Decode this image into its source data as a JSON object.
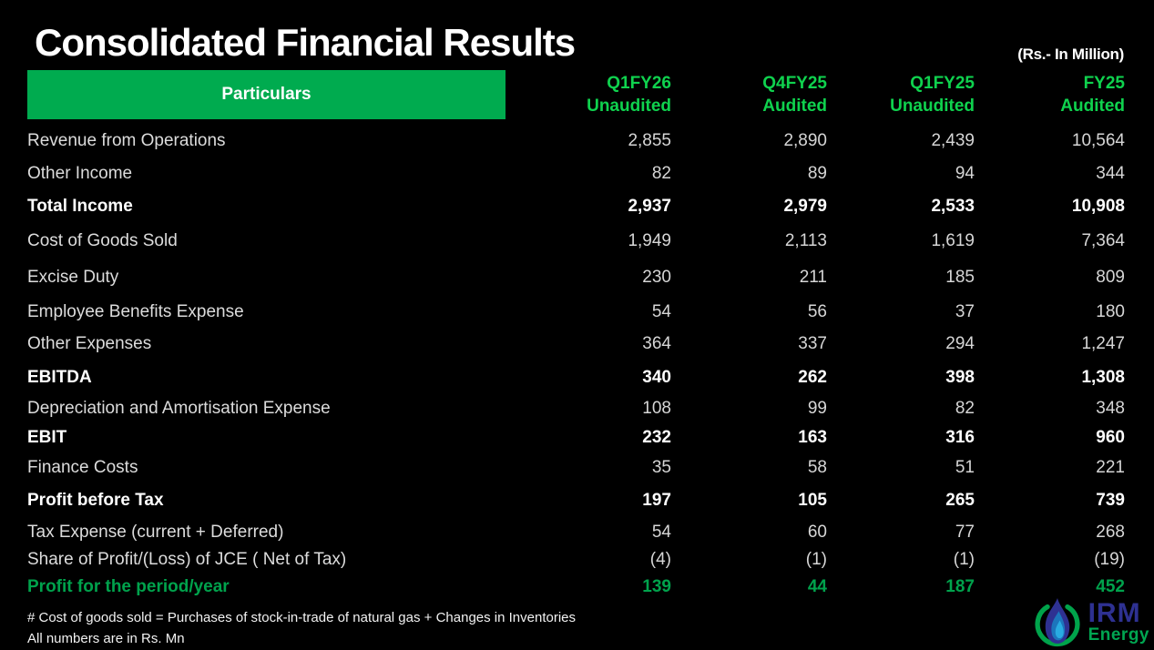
{
  "title": "Consolidated Financial Results",
  "unit_note": "(Rs.- In Million)",
  "table": {
    "particulars_header": "Particulars",
    "columns": [
      {
        "period": "Q1FY26",
        "status": "Unaudited"
      },
      {
        "period": "Q4FY25",
        "status": "Audited"
      },
      {
        "period": "Q1FY25",
        "status": "Unaudited"
      },
      {
        "period": "FY25",
        "status": "Audited"
      }
    ],
    "rows": [
      {
        "label": "Revenue from Operations",
        "values": [
          "2,855",
          "2,890",
          "2,439",
          "10,564"
        ],
        "style": "normal"
      },
      {
        "label": "Other Income",
        "values": [
          "82",
          "89",
          "94",
          "344"
        ],
        "style": "normal"
      },
      {
        "label": "Total Income",
        "values": [
          "2,937",
          "2,979",
          "2,533",
          "10,908"
        ],
        "style": "bold"
      },
      {
        "label": "Cost of Goods Sold",
        "values": [
          "1,949",
          "2,113",
          "1,619",
          "7,364"
        ],
        "style": "normal"
      },
      {
        "label": "Excise Duty",
        "values": [
          "230",
          "211",
          "185",
          "809"
        ],
        "style": "normal"
      },
      {
        "label": "Employee Benefits Expense",
        "values": [
          "54",
          "56",
          "37",
          "180"
        ],
        "style": "normal"
      },
      {
        "label": "Other Expenses",
        "values": [
          "364",
          "337",
          "294",
          "1,247"
        ],
        "style": "normal"
      },
      {
        "label": "EBITDA",
        "values": [
          "340",
          "262",
          "398",
          "1,308"
        ],
        "style": "bold"
      },
      {
        "label": "Depreciation and Amortisation Expense",
        "values": [
          "108",
          "99",
          "82",
          "348"
        ],
        "style": "normal"
      },
      {
        "label": "EBIT",
        "values": [
          "232",
          "163",
          "316",
          "960"
        ],
        "style": "bold"
      },
      {
        "label": "Finance Costs",
        "values": [
          "35",
          "58",
          "51",
          "221"
        ],
        "style": "normal"
      },
      {
        "label": "Profit before Tax",
        "values": [
          "197",
          "105",
          "265",
          "739"
        ],
        "style": "bold"
      },
      {
        "label": "Tax Expense (current + Deferred)",
        "values": [
          "54",
          "60",
          "77",
          "268"
        ],
        "style": "normal"
      },
      {
        "label": "Share of Profit/(Loss) of JCE ( Net of Tax)",
        "values": [
          "(4)",
          "(1)",
          "(1)",
          "(19)"
        ],
        "style": "normal"
      },
      {
        "label": "Profit for the period/year",
        "values": [
          "139",
          "44",
          "187",
          "452"
        ],
        "style": "green-bold"
      }
    ]
  },
  "footnotes": [
    "# Cost of goods sold = Purchases of stock-in-trade of natural gas  + Changes in Inventories",
    "All numbers are in Rs. Mn"
  ],
  "logo": {
    "name": "IRM",
    "tagline": "Energy"
  },
  "colors": {
    "background": "#000000",
    "bar_green": "#00ab4f",
    "header_text_green": "#0fd24e",
    "profit_green": "#00a24c",
    "logo_navy": "#2e3192",
    "logo_mid_blue": "#1c75bc",
    "logo_cyan": "#29abe2",
    "logo_green": "#00a651"
  }
}
